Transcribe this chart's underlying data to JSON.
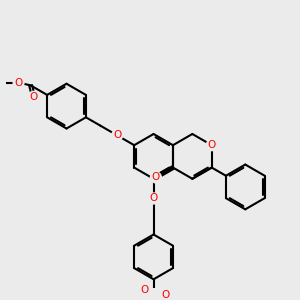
{
  "background_color": "#ebebeb",
  "bond_color": "#000000",
  "oxygen_color": "#ff0000",
  "line_width": 1.5,
  "figsize": [
    3.0,
    3.0
  ],
  "dpi": 100,
  "xlim": [
    0,
    10
  ],
  "ylim": [
    0,
    10
  ]
}
